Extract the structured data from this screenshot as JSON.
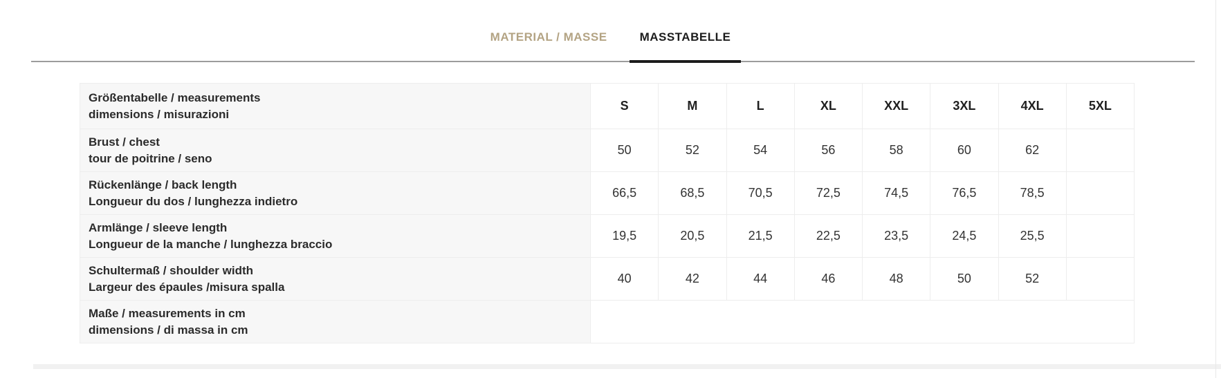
{
  "tabs": [
    {
      "label": "MATERIAL / MASSE",
      "active": false
    },
    {
      "label": "MASSTABELLE",
      "active": true
    }
  ],
  "size_table": {
    "header": {
      "label_line1": "Größentabelle / measurements",
      "label_line2": "dimensions / misurazioni",
      "sizes": [
        "S",
        "M",
        "L",
        "XL",
        "XXL",
        "3XL",
        "4XL",
        "5XL"
      ]
    },
    "rows": [
      {
        "label_line1": "Brust / chest",
        "label_line2": "tour de poitrine / seno",
        "values": [
          "50",
          "52",
          "54",
          "56",
          "58",
          "60",
          "62",
          ""
        ]
      },
      {
        "label_line1": "Rückenlänge / back length",
        "label_line2": "Longueur du dos / lunghezza indietro",
        "values": [
          "66,5",
          "68,5",
          "70,5",
          "72,5",
          "74,5",
          "76,5",
          "78,5",
          ""
        ]
      },
      {
        "label_line1": "Armlänge / sleeve length",
        "label_line2": "Longueur de la manche / lunghezza braccio",
        "values": [
          "19,5",
          "20,5",
          "21,5",
          "22,5",
          "23,5",
          "24,5",
          "25,5",
          ""
        ]
      },
      {
        "label_line1": "Schultermaß / shoulder width",
        "label_line2": "Largeur des épaules /misura spalla",
        "values": [
          "40",
          "42",
          "44",
          "46",
          "48",
          "50",
          "52",
          ""
        ]
      },
      {
        "label_line1": "Maße / measurements in cm",
        "label_line2": "dimensions / di massa in cm",
        "values": []
      }
    ]
  },
  "colors": {
    "tab_inactive": "#b3a383",
    "tab_active": "#1c1c1c",
    "tab_underline": "#1c1c1c",
    "separator_line": "#9c9c9c",
    "table_border": "#ededed",
    "label_cell_bg": "#f7f7f7",
    "value_text": "#333333",
    "bottom_divider": "#f1f1f1"
  }
}
